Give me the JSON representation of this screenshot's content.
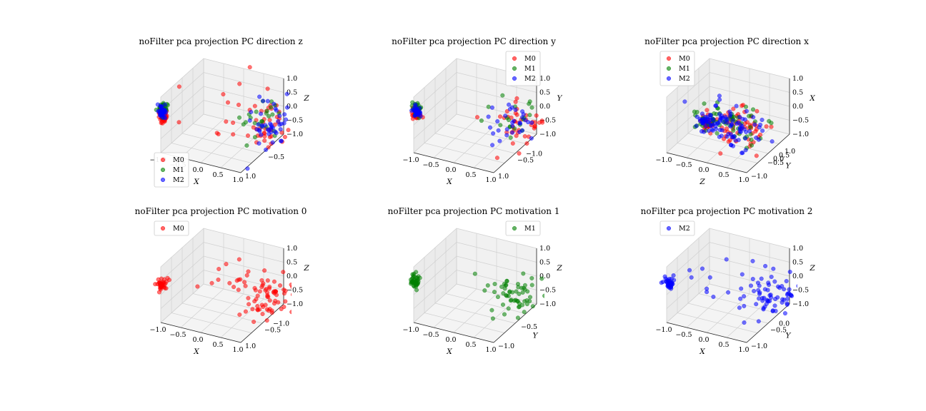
{
  "colors": {
    "M0": "#ff0000",
    "M1": "#008000",
    "M2": "#0000ff",
    "pane": "#f2f2f2",
    "grid": "#d0d0d0"
  },
  "chart_data": [
    {
      "type": "scatter",
      "projection": "3d",
      "title": "noFilter pca projection PC direction z",
      "axis_labels": [
        "X",
        "",
        "Z"
      ],
      "ticks": {
        "a": [
          "−1.0",
          "−0.5",
          "0.0",
          "0.5",
          "1.0"
        ],
        "b": [
          "1.0",
          "−0.5"
        ],
        "c": [
          "1.0",
          "0.5",
          "0.0",
          "−0.5",
          "−1.0"
        ]
      },
      "ranges": {
        "x": [
          -1,
          1
        ],
        "y": [
          -1,
          1
        ],
        "z": [
          -1,
          1
        ]
      },
      "legend": {
        "position": "lower-left",
        "entries": [
          "M0",
          "M1",
          "M2"
        ]
      },
      "series": [
        {
          "name": "M0",
          "color": "#ff0000",
          "clusters": [
            {
              "center": [
                -1.0,
                0.9,
                0.25
              ],
              "spread": [
                0.05,
                0.05,
                0.12
              ],
              "n": 40
            },
            {
              "center": [
                0.85,
                -0.6,
                -0.45
              ],
              "spread": [
                0.2,
                0.3,
                0.45
              ],
              "n": 40
            },
            {
              "center": [
                0.0,
                0.3,
                0.5
              ],
              "spread": [
                0.6,
                0.6,
                0.5
              ],
              "n": 12
            }
          ]
        },
        {
          "name": "M1",
          "color": "#008000",
          "clusters": [
            {
              "center": [
                -1.0,
                0.9,
                0.55
              ],
              "spread": [
                0.05,
                0.05,
                0.1
              ],
              "n": 35
            },
            {
              "center": [
                0.8,
                -0.5,
                -0.3
              ],
              "spread": [
                0.25,
                0.3,
                0.35
              ],
              "n": 25
            }
          ]
        },
        {
          "name": "M2",
          "color": "#0000ff",
          "clusters": [
            {
              "center": [
                -1.0,
                0.9,
                0.4
              ],
              "spread": [
                0.05,
                0.05,
                0.1
              ],
              "n": 40
            },
            {
              "center": [
                0.9,
                -0.5,
                -0.4
              ],
              "spread": [
                0.2,
                0.35,
                0.4
              ],
              "n": 45
            }
          ]
        }
      ]
    },
    {
      "type": "scatter",
      "projection": "3d",
      "title": "noFilter pca projection PC direction y",
      "axis_labels": [
        "X",
        "",
        "Y"
      ],
      "ticks": {
        "a": [
          "−1.0",
          "−0.5",
          "0.0",
          "0.5",
          "1.0"
        ],
        "b": [
          "1.0",
          "−0.5",
          "−1.0"
        ],
        "c": [
          "1.0",
          "0.5",
          "0.0",
          "−0.5",
          "−1.0"
        ]
      },
      "ranges": {
        "x": [
          -1,
          1
        ],
        "y": [
          -1,
          1
        ],
        "z": [
          -1,
          1
        ]
      },
      "legend": {
        "position": "upper-right",
        "entries": [
          "M0",
          "M1",
          "M2"
        ]
      },
      "series": [
        {
          "name": "M0",
          "color": "#ff0000",
          "clusters": [
            {
              "center": [
                -1.0,
                0.9,
                0.3
              ],
              "spread": [
                0.05,
                0.05,
                0.1
              ],
              "n": 40
            },
            {
              "center": [
                0.75,
                -0.6,
                -0.45
              ],
              "spread": [
                0.3,
                0.3,
                0.35
              ],
              "n": 40
            }
          ]
        },
        {
          "name": "M1",
          "color": "#008000",
          "clusters": [
            {
              "center": [
                -1.0,
                0.9,
                0.5
              ],
              "spread": [
                0.05,
                0.05,
                0.12
              ],
              "n": 30
            },
            {
              "center": [
                0.6,
                -0.5,
                -0.35
              ],
              "spread": [
                0.3,
                0.3,
                0.3
              ],
              "n": 20
            }
          ]
        },
        {
          "name": "M2",
          "color": "#0000ff",
          "clusters": [
            {
              "center": [
                -1.0,
                0.9,
                0.4
              ],
              "spread": [
                0.05,
                0.05,
                0.1
              ],
              "n": 30
            },
            {
              "center": [
                0.7,
                -0.6,
                -0.4
              ],
              "spread": [
                0.3,
                0.3,
                0.35
              ],
              "n": 30
            }
          ]
        }
      ]
    },
    {
      "type": "scatter",
      "projection": "3d",
      "title": "noFilter pca projection PC direction x",
      "axis_labels": [
        "Z",
        "Y",
        "X"
      ],
      "ticks": {
        "a": [
          "−1.0",
          "−0.5",
          "0.0",
          "0.5",
          "1.0"
        ],
        "b": [
          "−1.0",
          "−0.5",
          "0.0",
          "0.5",
          "1.0"
        ],
        "c": [
          "1.0",
          "0.5",
          "0.0",
          "−0.5",
          "−1.0"
        ]
      },
      "ranges": {
        "x": [
          -1,
          1
        ],
        "y": [
          -1,
          1
        ],
        "z": [
          -1,
          1
        ]
      },
      "legend": {
        "position": "upper-left",
        "entries": [
          "M0",
          "M1",
          "M2"
        ]
      },
      "series": [
        {
          "name": "M0",
          "color": "#ff0000",
          "clusters": [
            {
              "center": [
                -0.85,
                -0.6,
                -1.0
              ],
              "spread": [
                0.1,
                0.05,
                0.1
              ],
              "n": 35
            },
            {
              "center": [
                0.7,
                0.8,
                0.3
              ],
              "spread": [
                0.35,
                0.15,
                0.35
              ],
              "n": 60
            }
          ]
        },
        {
          "name": "M1",
          "color": "#008000",
          "clusters": [
            {
              "center": [
                -0.7,
                -0.5,
                -0.8
              ],
              "spread": [
                0.2,
                0.1,
                0.2
              ],
              "n": 30
            },
            {
              "center": [
                0.6,
                0.75,
                0.35
              ],
              "spread": [
                0.35,
                0.15,
                0.35
              ],
              "n": 35
            }
          ]
        },
        {
          "name": "M2",
          "color": "#0000ff",
          "clusters": [
            {
              "center": [
                -0.8,
                -0.55,
                -0.9
              ],
              "spread": [
                0.15,
                0.08,
                0.15
              ],
              "n": 40
            },
            {
              "center": [
                0.55,
                0.75,
                0.3
              ],
              "spread": [
                0.4,
                0.15,
                0.35
              ],
              "n": 70
            }
          ]
        }
      ]
    },
    {
      "type": "scatter",
      "projection": "3d",
      "title": "noFilter pca projection PC motivation 0",
      "axis_labels": [
        "X",
        "",
        "Z"
      ],
      "ticks": {
        "a": [
          "−1.0",
          "−0.5",
          "0.0",
          "0.5",
          "1.0"
        ],
        "b": [
          "1.0",
          "−0.5",
          "−1.0"
        ],
        "c": [
          "1.0",
          "0.5",
          "0.0",
          "−0.5",
          "−1.0"
        ]
      },
      "ranges": {
        "x": [
          -1,
          1
        ],
        "y": [
          -1,
          1
        ],
        "z": [
          -1,
          1
        ]
      },
      "legend": {
        "position": "upper-left",
        "entries": [
          "M0"
        ]
      },
      "series": [
        {
          "name": "M0",
          "color": "#ff0000",
          "clusters": [
            {
              "center": [
                -1.0,
                0.9,
                0.3
              ],
              "spread": [
                0.05,
                0.05,
                0.1
              ],
              "n": 35
            },
            {
              "center": [
                0.8,
                -0.6,
                -0.45
              ],
              "spread": [
                0.3,
                0.35,
                0.4
              ],
              "n": 70
            },
            {
              "center": [
                0.0,
                0.4,
                0.6
              ],
              "spread": [
                0.5,
                0.5,
                0.4
              ],
              "n": 12
            }
          ]
        }
      ]
    },
    {
      "type": "scatter",
      "projection": "3d",
      "title": "noFilter pca projection PC motivation 1",
      "axis_labels": [
        "X",
        "Y",
        "Z"
      ],
      "ticks": {
        "a": [
          "−1.0",
          "−0.5",
          "0.0",
          "0.5",
          "1.0"
        ],
        "b": [
          "−1.0",
          "−0.5"
        ],
        "c": [
          "1.0",
          "0.5",
          "0.0",
          "−0.5",
          "−1.0"
        ]
      },
      "ranges": {
        "x": [
          -1,
          1
        ],
        "y": [
          -1,
          1
        ],
        "z": [
          -1,
          1
        ]
      },
      "legend": {
        "position": "upper-right",
        "entries": [
          "M1"
        ]
      },
      "series": [
        {
          "name": "M1",
          "color": "#008000",
          "clusters": [
            {
              "center": [
                -1.0,
                0.9,
                0.4
              ],
              "spread": [
                0.05,
                0.05,
                0.12
              ],
              "n": 40
            },
            {
              "center": [
                0.8,
                -0.6,
                -0.5
              ],
              "spread": [
                0.3,
                0.35,
                0.35
              ],
              "n": 55
            },
            {
              "center": [
                0.3,
                0.4,
                0.6
              ],
              "spread": [
                0.3,
                0.3,
                0.2
              ],
              "n": 4
            }
          ]
        }
      ]
    },
    {
      "type": "scatter",
      "projection": "3d",
      "title": "noFilter pca projection PC motivation 2",
      "axis_labels": [
        "X",
        "Y",
        "Z"
      ],
      "ticks": {
        "a": [
          "−1.0",
          "−0.5",
          "0.0",
          "0.5",
          "1.0"
        ],
        "b": [
          "−1.0",
          "−0.5",
          "0.0"
        ],
        "c": [
          "1.0",
          "0.5",
          "0.0",
          "−0.5",
          "−1.0"
        ]
      },
      "ranges": {
        "x": [
          -1,
          1
        ],
        "y": [
          -1,
          1
        ],
        "z": [
          -1,
          1
        ]
      },
      "legend": {
        "position": "upper-left",
        "entries": [
          "M2"
        ]
      },
      "series": [
        {
          "name": "M2",
          "color": "#0000ff",
          "clusters": [
            {
              "center": [
                -1.0,
                0.9,
                0.35
              ],
              "spread": [
                0.05,
                0.05,
                0.1
              ],
              "n": 35
            },
            {
              "center": [
                0.8,
                -0.55,
                -0.45
              ],
              "spread": [
                0.3,
                0.35,
                0.35
              ],
              "n": 70
            },
            {
              "center": [
                0.0,
                0.4,
                0.6
              ],
              "spread": [
                0.4,
                0.4,
                0.3
              ],
              "n": 10
            }
          ]
        }
      ]
    }
  ]
}
